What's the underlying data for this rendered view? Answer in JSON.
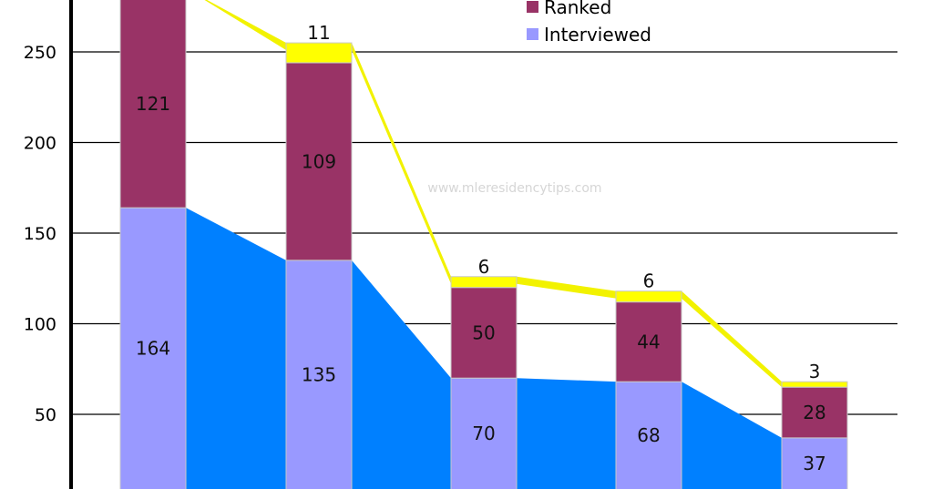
{
  "chart_data": {
    "type": "bar",
    "stacked": true,
    "categories": [
      "",
      "",
      "",
      "",
      ""
    ],
    "ylim": [
      0,
      270
    ],
    "yticks": [
      50,
      100,
      150,
      200,
      250
    ],
    "grid": true,
    "legend_position": "top-right",
    "series": [
      {
        "name": "Interviewed",
        "color": "#9999ff",
        "values": [
          164,
          135,
          70,
          68,
          37
        ]
      },
      {
        "name": "Ranked",
        "color": "#993366",
        "values": [
          121,
          109,
          50,
          44,
          28
        ]
      },
      {
        "name": "",
        "color": "#ffff00",
        "values": [
          null,
          11,
          6,
          6,
          3
        ]
      }
    ],
    "trend_area_color": "#0080ff",
    "trend_band_color": "#f2f200",
    "legend": [
      {
        "label": "Ranked",
        "color": "#993366"
      },
      {
        "label": "Interviewed",
        "color": "#9999ff"
      }
    ],
    "watermark": "www.mleresidencytips.com"
  }
}
